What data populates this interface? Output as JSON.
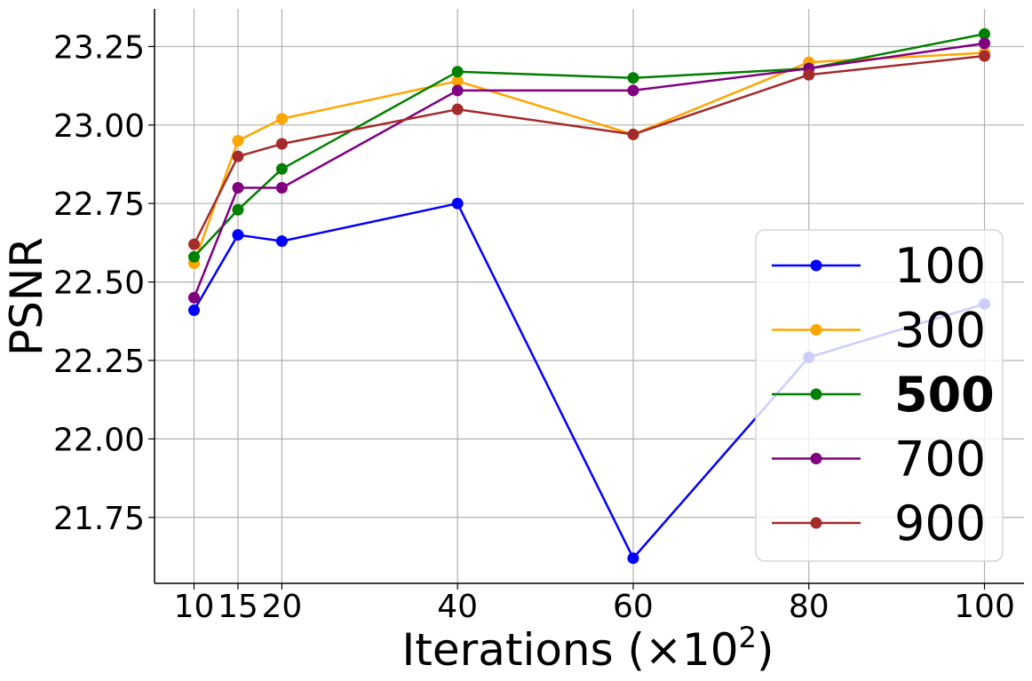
{
  "chart_data": {
    "type": "line",
    "title": "",
    "xlabel": "Iterations (×10",
    "xlabel_sup": "2",
    "xlabel_end": ")",
    "ylabel": "PSNR",
    "x": [
      10,
      15,
      20,
      40,
      60,
      80,
      100
    ],
    "x_tick_labels": [
      "10",
      "15",
      "20",
      "40",
      "60",
      "80",
      "100"
    ],
    "y_ticks": [
      21.75,
      22.0,
      22.25,
      22.5,
      22.75,
      23.0,
      23.25
    ],
    "y_tick_labels": [
      "21.75",
      "22.00",
      "22.25",
      "22.50",
      "22.75",
      "23.00",
      "23.25"
    ],
    "xlim": [
      5.5,
      104.5
    ],
    "ylim": [
      21.54,
      23.37
    ],
    "grid": true,
    "legend_position": "center-right",
    "series": [
      {
        "name": "100",
        "color": "#0000ff",
        "bold": false,
        "values": [
          22.41,
          22.65,
          22.63,
          22.75,
          21.62,
          22.26,
          22.43
        ]
      },
      {
        "name": "300",
        "color": "#ffa500",
        "bold": false,
        "values": [
          22.56,
          22.95,
          23.02,
          23.14,
          22.97,
          23.2,
          23.23
        ]
      },
      {
        "name": "500",
        "color": "#008000",
        "bold": true,
        "values": [
          22.58,
          22.73,
          22.86,
          23.17,
          23.15,
          23.18,
          23.29
        ]
      },
      {
        "name": "700",
        "color": "#800080",
        "bold": false,
        "values": [
          22.45,
          22.8,
          22.8,
          23.11,
          23.11,
          23.18,
          23.26
        ]
      },
      {
        "name": "900",
        "color": "#a52a2a",
        "bold": false,
        "values": [
          22.62,
          22.9,
          22.94,
          23.05,
          22.97,
          23.16,
          23.22
        ]
      }
    ]
  }
}
